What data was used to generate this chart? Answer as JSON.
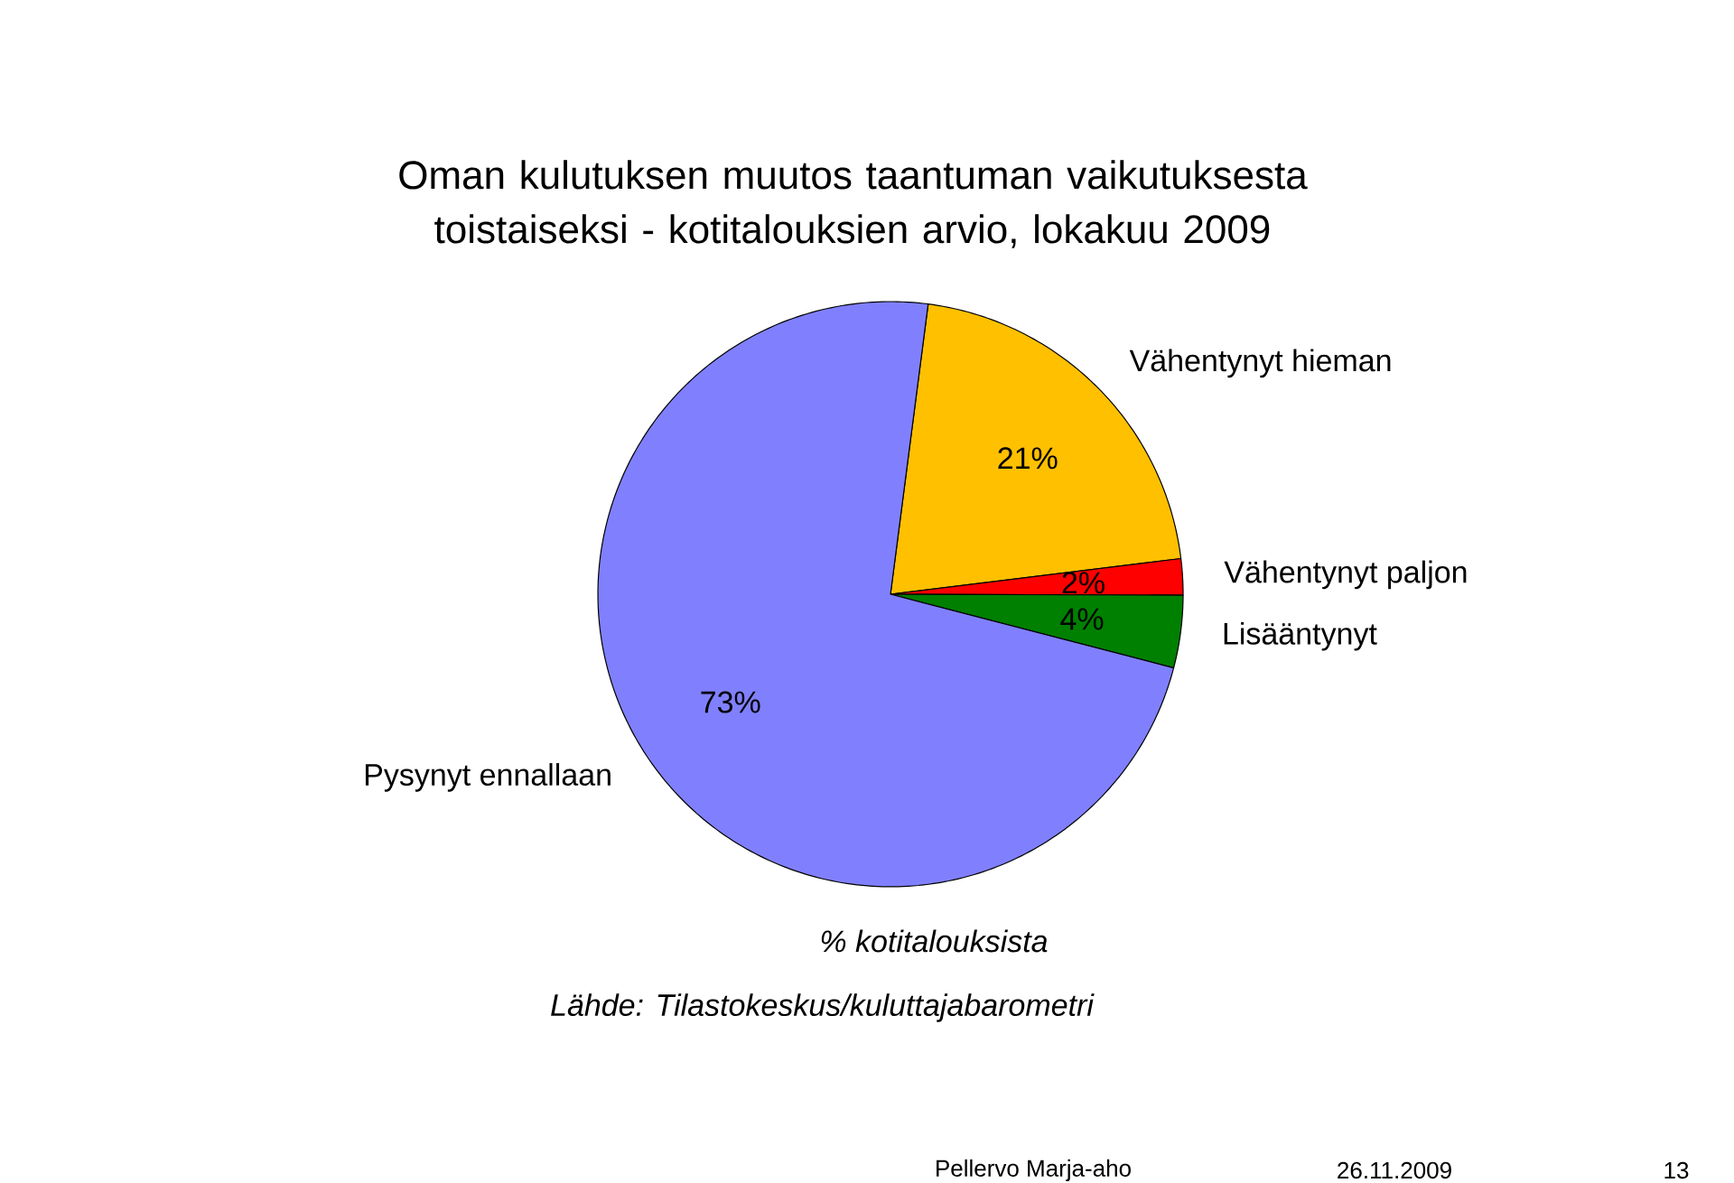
{
  "chart_data": {
    "type": "pie",
    "title": "Oman kulutuksen muutos taantuman vaikutuksesta toistaiseksi - kotitalouksien arvio, lokakuu 2009",
    "categories": [
      "Vähentynyt hieman",
      "Vähentynyt paljon",
      "Lisääntynyt",
      "Pysynyt ennallaan"
    ],
    "values": [
      21,
      2,
      4,
      73
    ],
    "value_labels": [
      "21%",
      "2%",
      "4%",
      "73%"
    ],
    "colors": [
      "#ffc000",
      "#ff0000",
      "#008000",
      "#8080ff"
    ],
    "annotations": [
      "% kotitalouksista",
      "Lähde: Tilastokeskus/kuluttajabarometri",
      "Pellervo Marja-aho",
      "26.11.2009",
      "13"
    ]
  }
}
